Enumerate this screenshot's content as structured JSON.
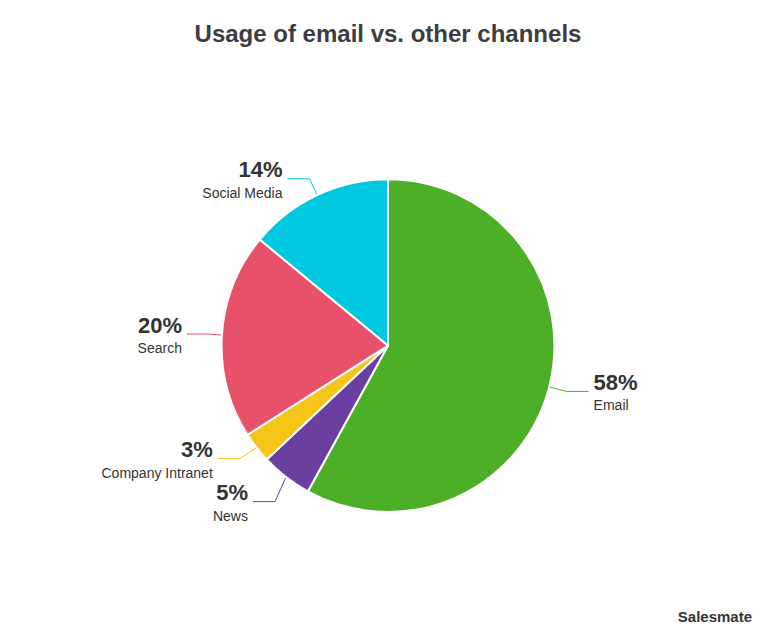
{
  "chart_data": {
    "type": "pie",
    "title": "Usage of email vs. other channels",
    "categories": [
      "Email",
      "News",
      "Company Intranet",
      "Search",
      "Social Media"
    ],
    "values": [
      58,
      5,
      3,
      20,
      14
    ],
    "value_labels": [
      "58%",
      "5%",
      "3%",
      "20%",
      "14%"
    ],
    "colors": [
      "#4caf27",
      "#6b3fa0",
      "#f5c518",
      "#e8516a",
      "#00c8e0"
    ],
    "data_labels": true,
    "legend": false,
    "annotations": [
      "Salesmate"
    ]
  }
}
